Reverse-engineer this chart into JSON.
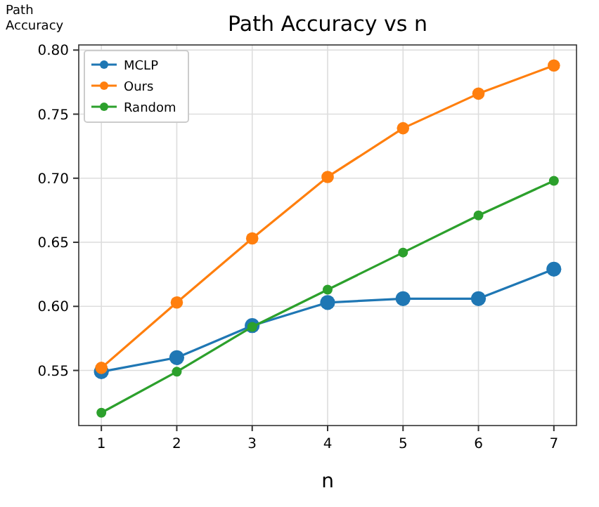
{
  "chart_data": {
    "type": "line",
    "title": "Path Accuracy vs n",
    "xlabel": "n",
    "ylabel": "Path Accuracy",
    "x": [
      1,
      2,
      3,
      4,
      5,
      6,
      7
    ],
    "series": [
      {
        "name": "MCLP",
        "color": "#1f77b4",
        "values": [
          0.549,
          0.56,
          0.585,
          0.603,
          0.606,
          0.606,
          0.629
        ]
      },
      {
        "name": "Ours",
        "color": "#ff7f0e",
        "values": [
          0.552,
          0.603,
          0.653,
          0.701,
          0.739,
          0.766,
          0.788
        ]
      },
      {
        "name": "Random",
        "color": "#2ca02c",
        "values": [
          0.517,
          0.549,
          0.584,
          0.613,
          0.642,
          0.671,
          0.698
        ]
      }
    ],
    "xlim": [
      0.7,
      7.3
    ],
    "xticks": [
      1,
      2,
      3,
      4,
      5,
      6,
      7
    ],
    "ylim": [
      0.507,
      0.804
    ],
    "yticks": [
      {
        "value": 0.55,
        "label": "0.55"
      },
      {
        "value": 0.6,
        "label": "0.60"
      },
      {
        "value": 0.65,
        "label": "0.65"
      },
      {
        "value": 0.7,
        "label": "0.70"
      },
      {
        "value": 0.75,
        "label": "0.75"
      },
      {
        "value": 0.8,
        "label": "0.80"
      }
    ],
    "grid": true,
    "legend": "top left",
    "marker": "circle",
    "line_style": "solid"
  }
}
